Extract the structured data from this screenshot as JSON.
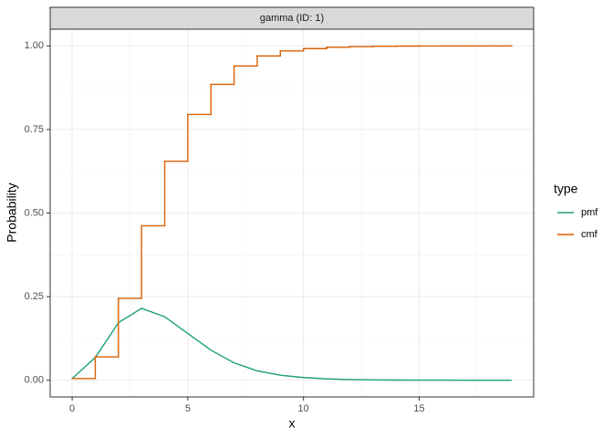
{
  "chart_data": {
    "type": "line",
    "strip_title": "gamma (ID: 1)",
    "x_label": "x",
    "y_label": "Probability",
    "legend_title": "type",
    "legend_position": "right",
    "grid": true,
    "x": [
      0,
      1,
      2,
      3,
      4,
      5,
      6,
      7,
      8,
      9,
      10,
      11,
      12,
      13,
      14,
      15,
      16,
      17,
      18,
      19
    ],
    "series": [
      {
        "name": "pmf",
        "color": "#1b9e77",
        "step": false,
        "values": [
          0.005,
          0.068,
          0.172,
          0.215,
          0.19,
          0.14,
          0.09,
          0.052,
          0.028,
          0.015,
          0.008,
          0.004,
          0.002,
          0.001,
          0.0005,
          0.0003,
          0.0002,
          0.0001,
          0.0001,
          0.0001
        ]
      },
      {
        "name": "cmf",
        "color": "#d95f02",
        "step": true,
        "values": [
          0.005,
          0.07,
          0.245,
          0.462,
          0.655,
          0.795,
          0.885,
          0.94,
          0.97,
          0.985,
          0.992,
          0.996,
          0.998,
          0.999,
          0.9995,
          0.9998,
          0.9999,
          1.0,
          1.0,
          1.0
        ]
      }
    ],
    "xlim": [
      -0.95,
      19.95
    ],
    "xticks": [
      0,
      5,
      10,
      15
    ],
    "ylim": [
      -0.05,
      1.05
    ],
    "yticks": [
      {
        "value": 0,
        "label": "0.00"
      },
      {
        "value": 0.25,
        "label": "0.25"
      },
      {
        "value": 0.5,
        "label": "0.50"
      },
      {
        "value": 0.75,
        "label": "0.75"
      },
      {
        "value": 1,
        "label": "1.00"
      }
    ]
  }
}
